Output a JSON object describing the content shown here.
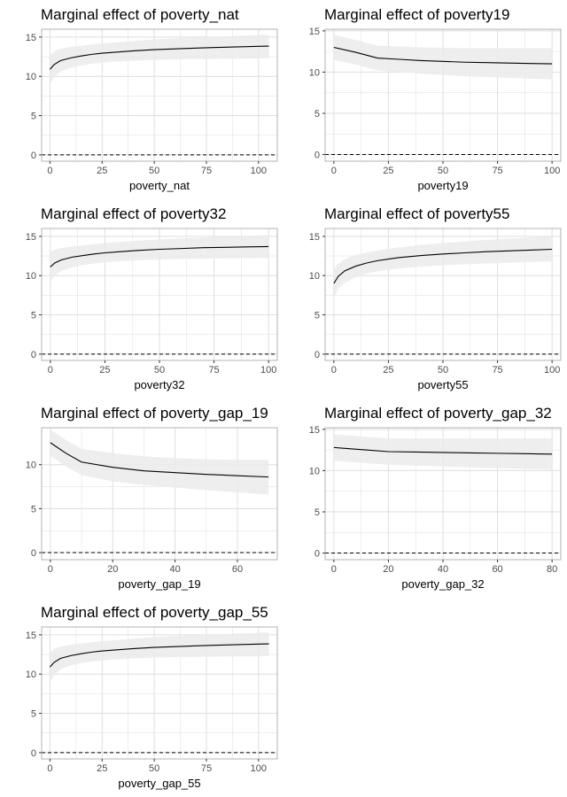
{
  "chart_data": [
    {
      "type": "line",
      "title": "Marginal effect of poverty_nat",
      "xlabel": "poverty_nat",
      "ylabel": "",
      "xlim": [
        -4,
        109
      ],
      "ylim": [
        -0.8,
        16
      ],
      "xticks": [
        0,
        25,
        50,
        75,
        100
      ],
      "yticks": [
        0,
        5,
        10,
        15
      ],
      "grid": true,
      "reference_line": {
        "y": 0,
        "style": "dashed"
      },
      "x": [
        0,
        2,
        5,
        10,
        15,
        20,
        25,
        30,
        40,
        50,
        60,
        70,
        80,
        90,
        100,
        105
      ],
      "values": [
        10.9,
        11.5,
        12.0,
        12.35,
        12.6,
        12.8,
        12.95,
        13.05,
        13.25,
        13.4,
        13.5,
        13.6,
        13.68,
        13.75,
        13.82,
        13.85
      ],
      "lower": [
        9.0,
        9.9,
        10.6,
        11.1,
        11.4,
        11.6,
        11.75,
        11.85,
        12.0,
        12.1,
        12.15,
        12.2,
        12.22,
        12.25,
        12.28,
        12.3
      ],
      "upper": [
        12.7,
        13.2,
        13.5,
        13.75,
        13.9,
        14.05,
        14.2,
        14.3,
        14.5,
        14.7,
        14.85,
        14.95,
        15.05,
        15.15,
        15.25,
        15.3
      ]
    },
    {
      "type": "line",
      "title": "Marginal effect of poverty19",
      "xlabel": "poverty19",
      "ylabel": "",
      "xlim": [
        -4,
        104
      ],
      "ylim": [
        -0.8,
        15.2
      ],
      "xticks": [
        0,
        25,
        50,
        75,
        100
      ],
      "yticks": [
        0,
        5,
        10,
        15
      ],
      "grid": true,
      "reference_line": {
        "y": 0,
        "style": "dashed"
      },
      "x": [
        0,
        10,
        20,
        30,
        40,
        50,
        60,
        70,
        80,
        90,
        100
      ],
      "values": [
        13.0,
        12.4,
        11.7,
        11.55,
        11.4,
        11.3,
        11.2,
        11.15,
        11.1,
        11.05,
        11.0
      ],
      "lower": [
        11.5,
        10.9,
        10.2,
        10.0,
        9.8,
        9.65,
        9.5,
        9.4,
        9.3,
        9.2,
        9.1
      ],
      "upper": [
        14.5,
        13.9,
        13.2,
        13.1,
        13.0,
        12.95,
        12.9,
        12.9,
        12.9,
        12.9,
        12.9
      ]
    },
    {
      "type": "line",
      "title": "Marginal effect of poverty32",
      "xlabel": "poverty32",
      "ylabel": "",
      "xlim": [
        -4,
        104
      ],
      "ylim": [
        -0.8,
        16
      ],
      "xticks": [
        0,
        25,
        50,
        75,
        100
      ],
      "yticks": [
        0,
        5,
        10,
        15
      ],
      "grid": true,
      "reference_line": {
        "y": 0,
        "style": "dashed"
      },
      "x": [
        0,
        2,
        5,
        10,
        15,
        20,
        25,
        30,
        40,
        50,
        60,
        70,
        80,
        90,
        100
      ],
      "values": [
        11.1,
        11.6,
        12.0,
        12.35,
        12.55,
        12.75,
        12.9,
        13.0,
        13.2,
        13.35,
        13.45,
        13.55,
        13.6,
        13.65,
        13.7
      ],
      "lower": [
        9.2,
        10.0,
        10.6,
        11.05,
        11.35,
        11.55,
        11.7,
        11.8,
        11.95,
        12.05,
        12.1,
        12.15,
        12.2,
        12.22,
        12.25
      ],
      "upper": [
        13.0,
        13.3,
        13.5,
        13.7,
        13.85,
        14.0,
        14.15,
        14.25,
        14.45,
        14.6,
        14.75,
        14.85,
        14.95,
        15.05,
        15.15
      ]
    },
    {
      "type": "line",
      "title": "Marginal effect of poverty55",
      "xlabel": "poverty55",
      "ylabel": "",
      "xlim": [
        -4,
        104
      ],
      "ylim": [
        -0.8,
        16
      ],
      "xticks": [
        0,
        25,
        50,
        75,
        100
      ],
      "yticks": [
        0,
        5,
        10,
        15
      ],
      "grid": true,
      "reference_line": {
        "y": 0,
        "style": "dashed"
      },
      "x": [
        0,
        2,
        5,
        10,
        15,
        20,
        25,
        30,
        40,
        50,
        60,
        70,
        80,
        90,
        100
      ],
      "values": [
        9.0,
        9.9,
        10.6,
        11.2,
        11.6,
        11.9,
        12.1,
        12.3,
        12.55,
        12.75,
        12.9,
        13.05,
        13.15,
        13.25,
        13.35
      ],
      "lower": [
        7.2,
        8.3,
        9.1,
        9.8,
        10.25,
        10.55,
        10.75,
        10.9,
        11.15,
        11.3,
        11.45,
        11.55,
        11.65,
        11.75,
        11.8
      ],
      "upper": [
        10.8,
        11.5,
        12.1,
        12.6,
        12.95,
        13.2,
        13.4,
        13.6,
        13.9,
        14.15,
        14.35,
        14.55,
        14.7,
        14.85,
        15.0
      ]
    },
    {
      "type": "line",
      "title": "Marginal effect of poverty_gap_19",
      "xlabel": "poverty_gap_19",
      "ylabel": "",
      "xlim": [
        -2.8,
        72.8
      ],
      "ylim": [
        -0.8,
        14.2
      ],
      "xticks": [
        0,
        20,
        40,
        60
      ],
      "yticks": [
        0,
        5,
        10
      ],
      "grid": true,
      "reference_line": {
        "y": 0,
        "style": "dashed"
      },
      "x": [
        0,
        5,
        10,
        20,
        30,
        40,
        50,
        60,
        70
      ],
      "values": [
        12.5,
        11.3,
        10.3,
        9.7,
        9.3,
        9.1,
        8.9,
        8.75,
        8.6
      ],
      "lower": [
        11.0,
        9.8,
        8.8,
        8.1,
        7.7,
        7.4,
        7.1,
        6.85,
        6.6
      ],
      "upper": [
        14.0,
        12.8,
        11.8,
        11.3,
        10.95,
        10.75,
        10.6,
        10.55,
        10.55
      ]
    },
    {
      "type": "line",
      "title": "Marginal effect of poverty_gap_32",
      "xlabel": "poverty_gap_32",
      "ylabel": "",
      "xlim": [
        -3.2,
        83.2
      ],
      "ylim": [
        -0.8,
        15.2
      ],
      "xticks": [
        0,
        20,
        40,
        60,
        80
      ],
      "yticks": [
        0,
        5,
        10,
        15
      ],
      "grid": true,
      "reference_line": {
        "y": 0,
        "style": "dashed"
      },
      "x": [
        0,
        10,
        20,
        30,
        40,
        50,
        60,
        70,
        80
      ],
      "values": [
        12.8,
        12.55,
        12.3,
        12.25,
        12.2,
        12.15,
        12.1,
        12.05,
        12.0
      ],
      "lower": [
        11.2,
        10.95,
        10.7,
        10.6,
        10.5,
        10.4,
        10.3,
        10.2,
        10.1
      ],
      "upper": [
        14.4,
        14.15,
        13.9,
        13.9,
        13.9,
        13.9,
        13.9,
        13.9,
        13.9
      ]
    },
    {
      "type": "line",
      "title": "Marginal effect of poverty_gap_55",
      "xlabel": "poverty_gap_55",
      "ylabel": "",
      "xlim": [
        -4,
        109
      ],
      "ylim": [
        -0.8,
        16
      ],
      "xticks": [
        0,
        25,
        50,
        75,
        100
      ],
      "yticks": [
        0,
        5,
        10,
        15
      ],
      "grid": true,
      "reference_line": {
        "y": 0,
        "style": "dashed"
      },
      "x": [
        0,
        2,
        5,
        10,
        15,
        20,
        25,
        30,
        40,
        50,
        60,
        70,
        80,
        90,
        100,
        105
      ],
      "values": [
        10.9,
        11.5,
        12.0,
        12.35,
        12.6,
        12.8,
        12.95,
        13.05,
        13.25,
        13.4,
        13.5,
        13.6,
        13.68,
        13.75,
        13.82,
        13.85
      ],
      "lower": [
        9.0,
        9.9,
        10.6,
        11.1,
        11.4,
        11.6,
        11.75,
        11.85,
        12.0,
        12.1,
        12.15,
        12.2,
        12.22,
        12.25,
        12.28,
        12.3
      ],
      "upper": [
        12.7,
        13.2,
        13.5,
        13.75,
        13.9,
        14.05,
        14.2,
        14.3,
        14.5,
        14.7,
        14.85,
        14.95,
        15.05,
        15.15,
        15.25,
        15.3
      ]
    }
  ],
  "colors": {
    "ribbon": "#ebebeb",
    "line": "#000000",
    "grid": "#dedede",
    "panel_border": "#b3b3b3",
    "tick_text": "#4d4d4d"
  }
}
